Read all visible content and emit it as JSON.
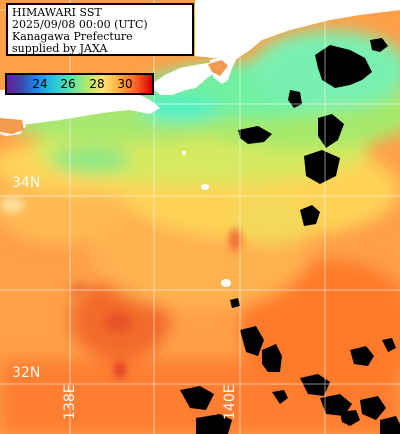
{
  "info": {
    "lines": [
      "HIMAWARI SST",
      "2025/09/08 00:00 (UTC)",
      "Kanagawa Prefecture",
      "supplied by JAXA"
    ]
  },
  "colorbar": {
    "ticks": [
      "24",
      "26",
      "28",
      "30"
    ],
    "colors": [
      "#6a1b9a",
      "#1e88e5",
      "#5fe2a6",
      "#ffe37a",
      "#ff6a2a",
      "#d50000"
    ]
  },
  "grid": {
    "lat_labels": [
      "34N",
      "32N"
    ],
    "lon_labels": [
      "138E",
      "140E"
    ]
  },
  "colors": {
    "land": "#ffffff",
    "cloud_mask": "#000000",
    "warm_sea": "#ff9a40",
    "mid_sea": "#ffd24a",
    "cool_sea": "#6fe9a8",
    "grid": "#ffffff"
  }
}
